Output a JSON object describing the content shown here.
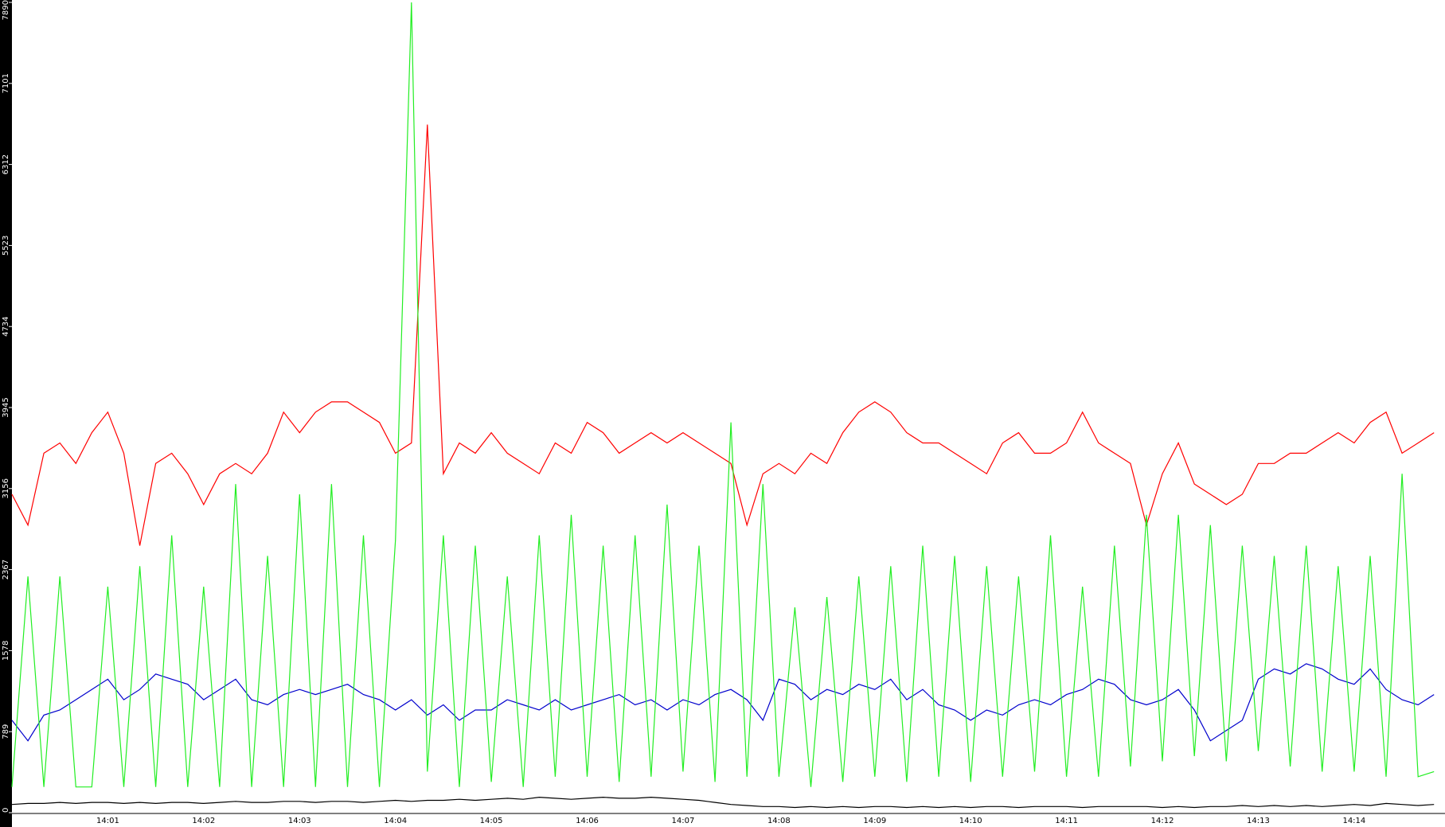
{
  "chart_data": {
    "type": "line",
    "categories": [
      null,
      null,
      null,
      null,
      null,
      null,
      "14:01",
      null,
      null,
      null,
      null,
      null,
      "14:02",
      null,
      null,
      null,
      null,
      null,
      "14:03",
      null,
      null,
      null,
      null,
      null,
      "14:04",
      null,
      null,
      null,
      null,
      null,
      "14:05",
      null,
      null,
      null,
      null,
      null,
      "14:06",
      null,
      null,
      null,
      null,
      null,
      "14:07",
      null,
      null,
      null,
      null,
      null,
      "14:08",
      null,
      null,
      null,
      null,
      null,
      "14:09",
      null,
      null,
      null,
      null,
      null,
      "14:10",
      null,
      null,
      null,
      null,
      null,
      "14:11",
      null,
      null,
      null,
      null,
      null,
      "14:12",
      null,
      null,
      null,
      null,
      null,
      "14:13",
      null,
      null,
      null,
      null,
      null,
      "14:14",
      null,
      null,
      null,
      null,
      null
    ],
    "series": [
      {
        "color": "#ff0000",
        "values": [
          3100,
          2800,
          3500,
          3600,
          3400,
          3700,
          3900,
          3500,
          2600,
          3400,
          3500,
          3300,
          3000,
          3300,
          3400,
          3300,
          3500,
          3900,
          3700,
          3900,
          4000,
          4000,
          3900,
          3800,
          3500,
          3600,
          6700,
          3300,
          3600,
          3500,
          3700,
          3500,
          3400,
          3300,
          3600,
          3500,
          3800,
          3700,
          3500,
          3600,
          3700,
          3600,
          3700,
          3600,
          3500,
          3400,
          2800,
          3300,
          3400,
          3300,
          3500,
          3400,
          3700,
          3900,
          4000,
          3900,
          3700,
          3600,
          3600,
          3500,
          3400,
          3300,
          3600,
          3700,
          3500,
          3500,
          3600,
          3900,
          3600,
          3500,
          3400,
          2800,
          3300,
          3600,
          3200,
          3100,
          3000,
          3100,
          3400,
          3400,
          3500,
          3500,
          3600,
          3700,
          3600,
          3800,
          3900,
          3500,
          3600,
          3700
        ]
      },
      {
        "color": "#0000cc",
        "values": [
          900,
          700,
          950,
          1000,
          1100,
          1200,
          1300,
          1100,
          1200,
          1350,
          1300,
          1250,
          1100,
          1200,
          1300,
          1100,
          1050,
          1150,
          1200,
          1150,
          1200,
          1250,
          1150,
          1100,
          1000,
          1100,
          950,
          1050,
          900,
          1000,
          1000,
          1100,
          1050,
          1000,
          1100,
          1000,
          1050,
          1100,
          1150,
          1050,
          1100,
          1000,
          1100,
          1050,
          1150,
          1200,
          1100,
          900,
          1300,
          1250,
          1100,
          1200,
          1150,
          1250,
          1200,
          1300,
          1100,
          1200,
          1050,
          1000,
          900,
          1000,
          950,
          1050,
          1100,
          1050,
          1150,
          1200,
          1300,
          1250,
          1100,
          1050,
          1100,
          1200,
          1000,
          700,
          800,
          900,
          1300,
          1400,
          1350,
          1450,
          1400,
          1300,
          1250,
          1400,
          1200,
          1100,
          1050,
          1150
        ]
      },
      {
        "color": "#22ee22",
        "values": [
          250,
          2300,
          250,
          2300,
          250,
          250,
          2200,
          250,
          2400,
          250,
          2700,
          250,
          2200,
          250,
          3200,
          250,
          2500,
          250,
          3100,
          250,
          3200,
          250,
          2700,
          250,
          2650,
          7890,
          400,
          2700,
          250,
          2600,
          300,
          2300,
          250,
          2700,
          350,
          2900,
          350,
          2600,
          300,
          2700,
          350,
          3000,
          400,
          2600,
          300,
          3800,
          350,
          3200,
          350,
          2000,
          250,
          2100,
          300,
          2300,
          350,
          2400,
          300,
          2600,
          350,
          2500,
          300,
          2400,
          350,
          2300,
          400,
          2700,
          350,
          2200,
          350,
          2600,
          450,
          2900,
          500,
          2900,
          550,
          2800,
          500,
          2600,
          600,
          2500,
          450,
          2600,
          400,
          2400,
          400,
          2500,
          350,
          3300,
          350,
          400
        ]
      },
      {
        "color": "#000000",
        "values": [
          80,
          90,
          90,
          100,
          90,
          100,
          100,
          90,
          100,
          90,
          100,
          100,
          90,
          100,
          110,
          100,
          100,
          110,
          110,
          100,
          110,
          110,
          100,
          110,
          120,
          110,
          120,
          120,
          130,
          120,
          130,
          140,
          130,
          150,
          140,
          130,
          140,
          150,
          140,
          140,
          150,
          140,
          130,
          120,
          100,
          80,
          70,
          60,
          60,
          50,
          60,
          50,
          60,
          50,
          60,
          60,
          50,
          60,
          50,
          60,
          50,
          60,
          60,
          50,
          60,
          60,
          60,
          50,
          60,
          60,
          60,
          60,
          50,
          60,
          50,
          60,
          60,
          70,
          60,
          70,
          60,
          70,
          60,
          70,
          80,
          70,
          90,
          80,
          70,
          80
        ]
      }
    ],
    "ylim": [
      0,
      7890
    ],
    "yticks": [
      0,
      789,
      1578,
      2367,
      3156,
      3945,
      4734,
      5523,
      6312,
      7101,
      7890
    ]
  }
}
